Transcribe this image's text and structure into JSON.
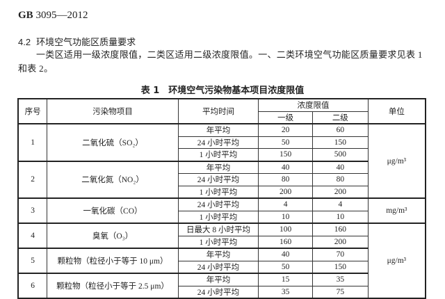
{
  "header": {
    "code_prefix": "GB",
    "code_rest": " 3095—2012"
  },
  "section": {
    "number": "4.2",
    "title": "环境空气功能区质量要求"
  },
  "paragraph": "一类区适用一级浓度限值，二类区适用二级浓度限值。一、二类环境空气功能区质量要求见表 1 和表 2。",
  "table": {
    "caption": "表 1　环境空气污染物基本项目浓度限值",
    "headers": {
      "no": "序号",
      "pollutant": "污染物项目",
      "avg_time": "平均时间",
      "limit": "浓度限值",
      "grade1": "一级",
      "grade2": "二级",
      "unit": "单位"
    },
    "units": [
      "μg/m³",
      "mg/m³",
      "μg/m³"
    ],
    "groups": [
      {
        "no": "1",
        "pollutant": "二氧化硫（SO₂）",
        "rows": [
          [
            "年平均",
            "20",
            "60"
          ],
          [
            "24 小时平均",
            "50",
            "150"
          ],
          [
            "1 小时平均",
            "150",
            "500"
          ]
        ]
      },
      {
        "no": "2",
        "pollutant": "二氧化氮（NO₂）",
        "rows": [
          [
            "年平均",
            "40",
            "40"
          ],
          [
            "24 小时平均",
            "80",
            "80"
          ],
          [
            "1 小时平均",
            "200",
            "200"
          ]
        ]
      },
      {
        "no": "3",
        "pollutant": "一氧化碳（CO）",
        "rows": [
          [
            "24 小时平均",
            "4",
            "4"
          ],
          [
            "1 小时平均",
            "10",
            "10"
          ]
        ]
      },
      {
        "no": "4",
        "pollutant": "臭氧（O₃）",
        "rows": [
          [
            "日最大 8 小时平均",
            "100",
            "160"
          ],
          [
            "1 小时平均",
            "160",
            "200"
          ]
        ]
      },
      {
        "no": "5",
        "pollutant": "颗粒物（粒径小于等于 10 μm）",
        "rows": [
          [
            "年平均",
            "40",
            "70"
          ],
          [
            "24 小时平均",
            "50",
            "150"
          ]
        ]
      },
      {
        "no": "6",
        "pollutant": "颗粒物（粒径小于等于 2.5 μm）",
        "rows": [
          [
            "年平均",
            "15",
            "35"
          ],
          [
            "24 小时平均",
            "35",
            "75"
          ]
        ]
      }
    ]
  }
}
